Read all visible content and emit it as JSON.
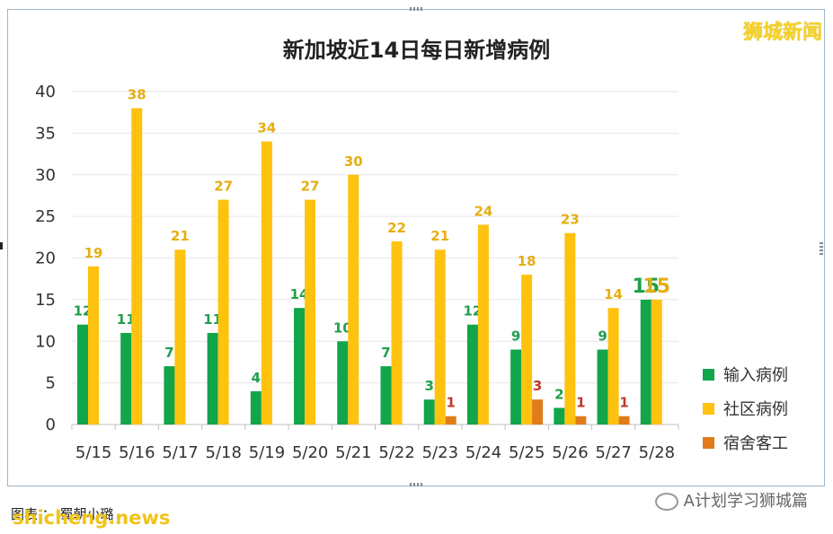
{
  "brand": "狮城新闻",
  "footer": {
    "caption": "图表 ：  蜀朝小璐",
    "site": "shicheng.news",
    "wechat": "A计划学习狮城篇"
  },
  "colors": {
    "import": "#12a54a",
    "community": "#ffc20e",
    "dorm": "#e07c1a",
    "label_import": "#1f9e4b",
    "label_community": "#e6ae12",
    "label_dorm": "#c0392b"
  },
  "chart_data": {
    "type": "bar",
    "title": "新加坡近14日每日新增病例",
    "categories": [
      "5/15",
      "5/16",
      "5/17",
      "5/18",
      "5/19",
      "5/20",
      "5/21",
      "5/22",
      "5/23",
      "5/24",
      "5/25",
      "5/26",
      "5/27",
      "5/28"
    ],
    "series": [
      {
        "name": "输入病例",
        "values": [
          12,
          11,
          7,
          11,
          4,
          14,
          10,
          7,
          3,
          12,
          9,
          2,
          9,
          15
        ]
      },
      {
        "name": "社区病例",
        "values": [
          19,
          38,
          21,
          27,
          34,
          27,
          30,
          22,
          21,
          24,
          18,
          23,
          14,
          15
        ]
      },
      {
        "name": "宿舍客工",
        "values": [
          0,
          0,
          0,
          0,
          0,
          0,
          0,
          0,
          1,
          0,
          3,
          1,
          1,
          0
        ]
      }
    ],
    "yticks": [
      "0",
      "5",
      "10",
      "15",
      "20",
      "25",
      "30",
      "35",
      "40"
    ],
    "ylim": [
      0,
      40
    ],
    "grid": true,
    "legend": "right"
  }
}
